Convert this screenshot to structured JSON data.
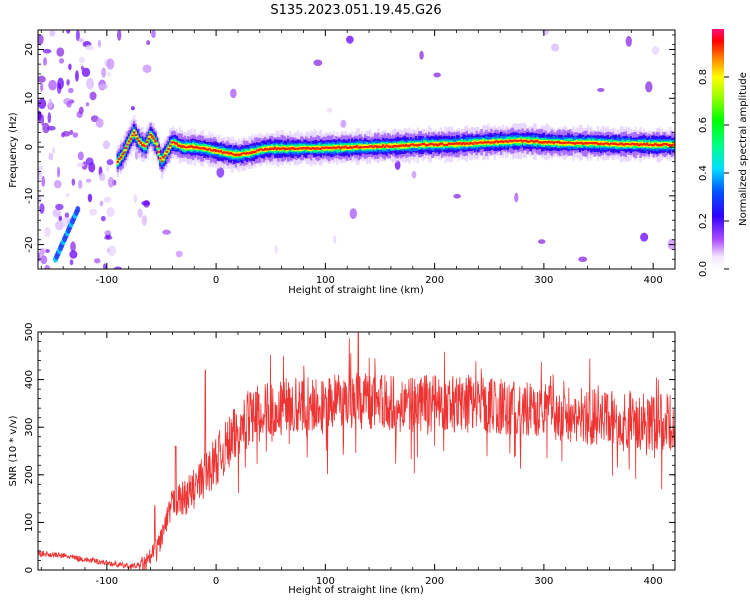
{
  "title": "S135.2023.051.19.45.G26",
  "chart_data": [
    {
      "type": "heatmap",
      "xlabel": "Height of straight line (km)",
      "ylabel": "Frequency (Hz)",
      "xlim": [
        -163,
        420
      ],
      "ylim": [
        -25,
        24
      ],
      "xticks": [
        -100,
        0,
        100,
        200,
        300,
        400
      ],
      "yticks": [
        -20,
        -10,
        0,
        10,
        20
      ],
      "colorbar": {
        "label": "Normalized spectral amplitude",
        "range": [
          0,
          1
        ],
        "ticks": [
          "0.0",
          "0.2",
          "0.4",
          "0.6",
          "0.8"
        ]
      },
      "ridge": {
        "x": [
          -90,
          -85,
          -80,
          -75,
          -70,
          -65,
          -60,
          -55,
          -50,
          -45,
          -40,
          -35,
          -30,
          -20,
          -10,
          0,
          10,
          20,
          30,
          40,
          50,
          70,
          100,
          130,
          160,
          190,
          220,
          250,
          280,
          310,
          340,
          370,
          400,
          420
        ],
        "y": [
          -3,
          -1.5,
          1,
          3,
          1,
          0,
          2.5,
          1,
          -3,
          -1,
          1,
          0.5,
          0,
          0,
          -0.3,
          -0.8,
          -1.2,
          -1.6,
          -1.2,
          -0.6,
          -0.3,
          -0.3,
          -0.2,
          0,
          0.2,
          0.5,
          0.6,
          1,
          1.3,
          0.9,
          0.8,
          0.6,
          0.5,
          0.5
        ]
      }
    },
    {
      "type": "line",
      "xlabel": "Height of straight line (km)",
      "ylabel": "SNR (10 * v/v)",
      "xlim": [
        -163,
        420
      ],
      "ylim": [
        0,
        500
      ],
      "xticks": [
        -100,
        0,
        100,
        200,
        300,
        400
      ],
      "yticks": [
        0,
        100,
        200,
        300,
        400,
        500
      ],
      "color": "#ee3333",
      "series": [
        {
          "x": [
            -163,
            -140,
            -120,
            -100,
            -80,
            -65,
            -55,
            -50,
            -45,
            -40,
            -30,
            -20,
            -10,
            0,
            10,
            20,
            30,
            50,
            80,
            100,
            130,
            160,
            200,
            250,
            300,
            350,
            400,
            420
          ],
          "values": [
            35,
            30,
            22,
            15,
            8,
            10,
            40,
            70,
            100,
            140,
            150,
            170,
            200,
            230,
            260,
            290,
            320,
            340,
            350,
            350,
            355,
            350,
            350,
            345,
            335,
            320,
            310,
            310
          ]
        }
      ],
      "spikes": [
        {
          "x": -56,
          "y": 135
        },
        {
          "x": -37,
          "y": 260
        },
        {
          "x": -10,
          "y": 420
        },
        {
          "x": 130,
          "y": 500
        }
      ]
    }
  ]
}
